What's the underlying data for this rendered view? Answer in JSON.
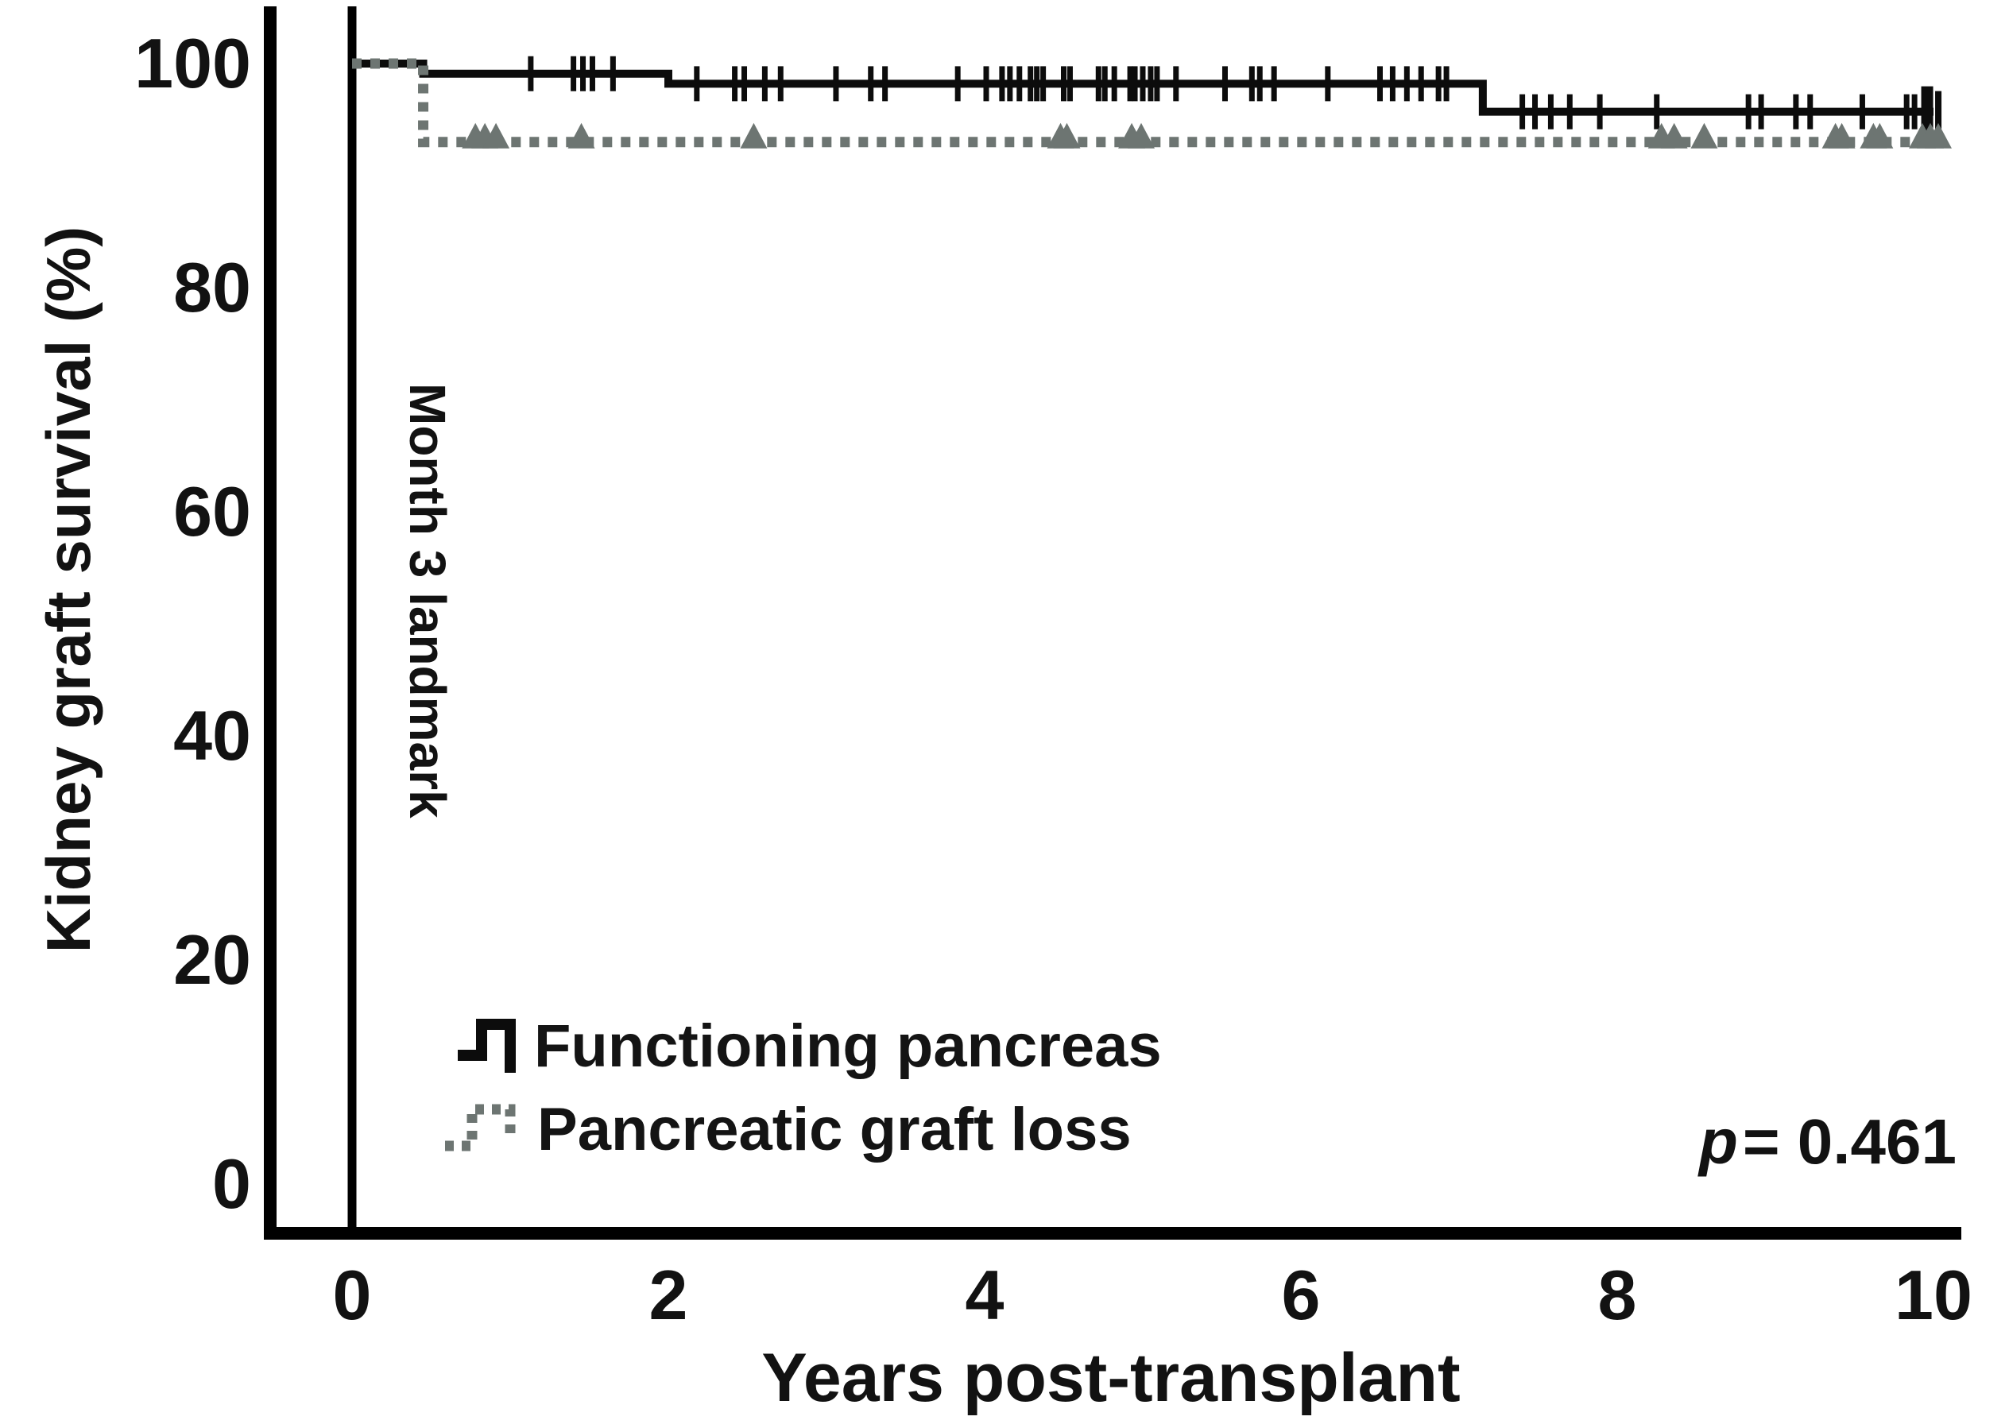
{
  "figure": {
    "y_axis_label": "Kidney graft survival (%)",
    "x_axis_label": "Years post-transplant",
    "landmark_label": "Month 3 landmark",
    "p_label_symbol": "p",
    "p_label_rest": "= 0.461"
  },
  "legend": {
    "items": [
      {
        "label": "Functioning pancreas",
        "style": "solid"
      },
      {
        "label": "Pancreatic graft loss",
        "style": "dotted"
      }
    ]
  },
  "colors": {
    "solid_curve": "#0c0c0c",
    "dotted_curve": "#6d7572",
    "axis": "#000000",
    "text": "#121212"
  },
  "chart_data": {
    "type": "line",
    "subtype": "kaplan_meier_step",
    "title": "",
    "xlabel": "Years post-transplant",
    "ylabel": "Kidney graft survival (%)",
    "xlim": [
      0,
      10
    ],
    "ylim": [
      0,
      100
    ],
    "x_ticks": [
      0,
      2,
      4,
      6,
      8,
      10
    ],
    "y_ticks": [
      100,
      80,
      60,
      40,
      20,
      0
    ],
    "grid": false,
    "legend_position": "bottom-left-inside",
    "annotations": {
      "p_value": "p = 0.461",
      "landmark_text": "Month 3 landmark",
      "landmark_line_x": 0
    },
    "series": [
      {
        "name": "Functioning pancreas",
        "style": "solid",
        "color": "#0c0c0c",
        "step_points": [
          [
            0,
            100
          ],
          [
            0.45,
            99.1
          ],
          [
            2.0,
            98.2
          ],
          [
            7.15,
            95.7
          ]
        ],
        "end_x": 10.0,
        "terminal_bar_x": 9.96,
        "censor_marks": [
          1.13,
          1.4,
          1.46,
          1.52,
          1.65,
          2.18,
          2.42,
          2.48,
          2.61,
          2.71,
          3.06,
          3.28,
          3.37,
          3.83,
          4.01,
          4.11,
          4.16,
          4.22,
          4.29,
          4.33,
          4.37,
          4.5,
          4.54,
          4.72,
          4.76,
          4.82,
          4.92,
          4.95,
          5.0,
          5.05,
          5.09,
          5.21,
          5.52,
          5.69,
          5.74,
          5.83,
          6.17,
          6.5,
          6.58,
          6.67,
          6.76,
          6.87,
          6.92,
          7.4,
          7.48,
          7.58,
          7.7,
          7.89,
          8.25,
          8.83,
          8.91,
          9.13,
          9.22,
          9.55,
          9.83,
          9.88
        ]
      },
      {
        "name": "Pancreatic graft loss",
        "style": "dotted",
        "color": "#6d7572",
        "step_points": [
          [
            0,
            100
          ],
          [
            0.45,
            93.0
          ]
        ],
        "end_x": 10.05,
        "censor_marks": [
          0.78,
          0.84,
          0.91,
          1.45,
          2.54,
          4.48,
          4.52,
          4.93,
          4.99,
          8.28,
          8.36,
          8.55,
          9.38,
          9.42,
          9.62,
          9.66,
          9.93,
          9.98,
          10.03
        ]
      }
    ]
  }
}
